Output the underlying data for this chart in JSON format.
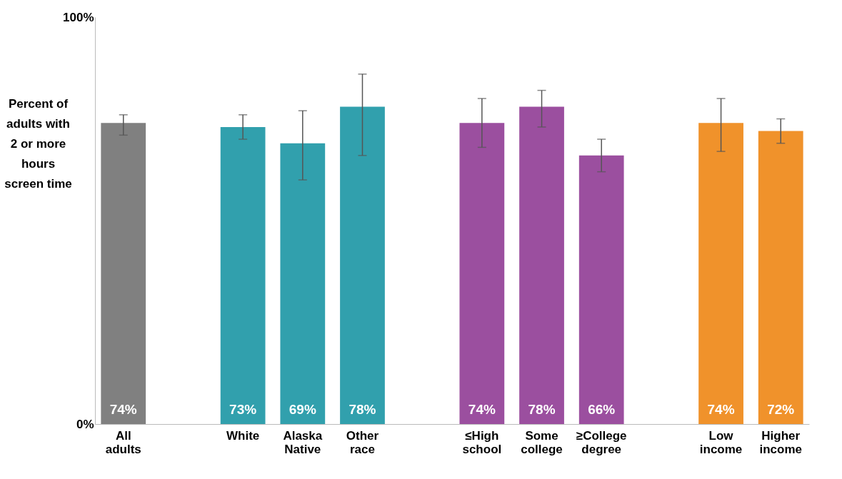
{
  "chart_data": {
    "type": "bar",
    "ylabel": "Percent of adults with 2 or more hours screen time",
    "categories": [
      "All adults",
      null,
      "White",
      "Alaska Native",
      "Other race",
      null,
      "≤High school",
      "Some college",
      "≥College degree",
      null,
      "Low income",
      "Higher income"
    ],
    "values": [
      74,
      null,
      73,
      69,
      78,
      null,
      74,
      78,
      66,
      null,
      74,
      72
    ],
    "colors": [
      "#808080",
      null,
      "#31a0ad",
      "#31a0ad",
      "#31a0ad",
      null,
      "#9b4f9f",
      "#9b4f9f",
      "#9b4f9f",
      null,
      "#f0922b",
      "#f0922b"
    ],
    "errors": [
      [
        71,
        76
      ],
      null,
      [
        70,
        76
      ],
      [
        60,
        77
      ],
      [
        66,
        86
      ],
      null,
      [
        68,
        80
      ],
      [
        73,
        82
      ],
      [
        62,
        70
      ],
      null,
      [
        67,
        80
      ],
      [
        69,
        75
      ]
    ],
    "value_labels": [
      "74%",
      null,
      "73%",
      "69%",
      "78%",
      null,
      "74%",
      "78%",
      "66%",
      null,
      "74%",
      "72%"
    ],
    "ylim": [
      0,
      100
    ],
    "yticks": [
      {
        "value": 0,
        "label": "0%"
      },
      {
        "value": 100,
        "label": "100%"
      }
    ],
    "grid": false
  }
}
